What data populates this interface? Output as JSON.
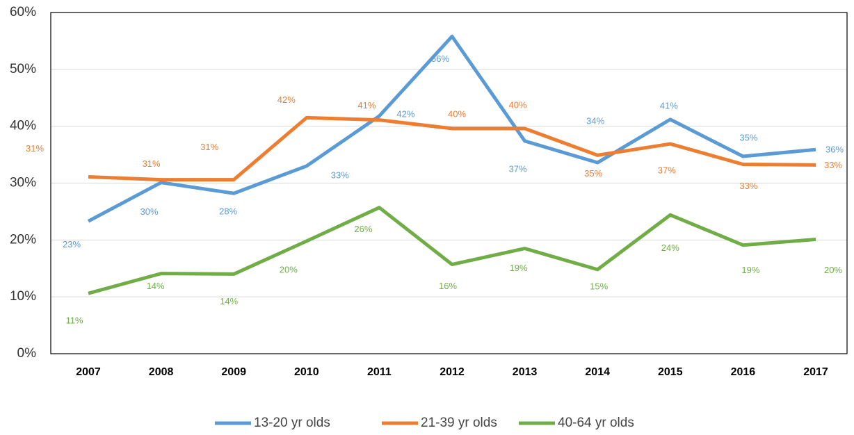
{
  "chart_data": {
    "type": "line",
    "categories": [
      "2007",
      "2008",
      "2009",
      "2010",
      "2011",
      "2012",
      "2013",
      "2014",
      "2015",
      "2016",
      "2017"
    ],
    "series": [
      {
        "name": "13-20 yr olds",
        "color": "#5b9bd5",
        "values": [
          23.3,
          30.1,
          28.2,
          33.0,
          41.8,
          55.8,
          37.4,
          33.6,
          41.2,
          34.7,
          35.9
        ],
        "value_labels": [
          "23%",
          "30%",
          "28%",
          "33%",
          "42%",
          "56%",
          "37%",
          "34%",
          "41%",
          "35%",
          "36%"
        ]
      },
      {
        "name": "21-39 yr olds",
        "color": "#ed7d31",
        "values": [
          31.1,
          30.6,
          30.6,
          41.5,
          41.1,
          39.6,
          39.6,
          34.9,
          36.9,
          33.3,
          33.2
        ],
        "value_labels": [
          "31%",
          "31%",
          "31%",
          "42%",
          "41%",
          "40%",
          "40%",
          "35%",
          "37%",
          "33%",
          "33%"
        ]
      },
      {
        "name": "40-64 yr olds",
        "color": "#70ad47",
        "values": [
          10.6,
          14.1,
          14.0,
          19.8,
          25.7,
          15.7,
          18.5,
          14.8,
          24.4,
          19.1,
          20.1
        ],
        "value_labels": [
          "11%",
          "14%",
          "14%",
          "20%",
          "26%",
          "16%",
          "19%",
          "15%",
          "24%",
          "19%",
          "20%"
        ]
      }
    ],
    "ylim": [
      0,
      60
    ],
    "yticks": [
      {
        "value": 0,
        "label": "0%"
      },
      {
        "value": 10,
        "label": "10%"
      },
      {
        "value": 20,
        "label": "20%"
      },
      {
        "value": 30,
        "label": "30%"
      },
      {
        "value": 40,
        "label": "40%"
      },
      {
        "value": 50,
        "label": "50%"
      },
      {
        "value": 60,
        "label": "60%"
      }
    ],
    "grid": true,
    "legend": "bottom"
  }
}
